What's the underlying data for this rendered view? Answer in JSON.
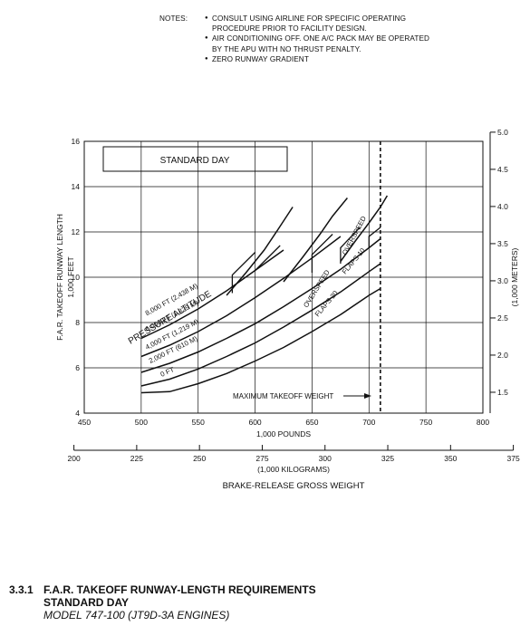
{
  "notes": {
    "header": "NOTES:",
    "items": [
      "CONSULT USING AIRLINE FOR SPECIFIC OPERATING PROCEDURE PRIOR TO FACILITY DESIGN.",
      "AIR CONDITIONING OFF. ONE A/C PACK MAY BE OPERATED BY THE APU WITH NO THRUST PENALTY.",
      "ZERO RUNWAY GRADIENT"
    ]
  },
  "chart_data": {
    "type": "line",
    "box_label": "STANDARD DAY",
    "xlabel": "1,000 POUNDS",
    "ylabel": "F.A.R. TAKEOFF RUNWAY LENGTH",
    "ylabel_unit": "1,000 FEET",
    "y2label": "(1,000 METERS)",
    "x2label": "(1,000 KILOGRAMS)",
    "bottom_label": "BRAKE-RELEASE GROSS WEIGHT",
    "xlim": [
      450,
      800
    ],
    "ylim": [
      4,
      16
    ],
    "x2lim": [
      200,
      375
    ],
    "y2lim": [
      1.2192,
      5.0
    ],
    "x_ticks": [
      "450",
      "500",
      "550",
      "600",
      "650",
      "700",
      "750",
      "800"
    ],
    "y_ticks": [
      "4",
      "6",
      "8",
      "10",
      "12",
      "14",
      "16"
    ],
    "x2_ticks": [
      "200",
      "225",
      "250",
      "275",
      "300",
      "325",
      "350",
      "375"
    ],
    "y2_ticks": [
      "1.5",
      "2.0",
      "2.5",
      "3.0",
      "3.5",
      "4.0",
      "4.5",
      "5.0"
    ],
    "grid": true,
    "legend_title": "PRESSURE ALTITUDE",
    "max_takeoff_weight_label": "MAXIMUM TAKEOFF WEIGHT",
    "max_takeoff_weight": 710,
    "annotations": {
      "overspeed": "OVERSPEED",
      "flaps_10": "FLAPS 10",
      "flaps_20": "FLAPS 20"
    },
    "series": [
      {
        "name": "0 FT",
        "x": [
          500,
          525,
          550,
          575,
          600,
          625,
          650,
          675,
          700,
          710
        ],
        "y": [
          4.9,
          4.95,
          5.3,
          5.75,
          6.3,
          6.9,
          7.6,
          8.35,
          9.2,
          9.5
        ]
      },
      {
        "name": "2,000 FT (610 M)",
        "x": [
          500,
          525,
          550,
          575,
          600,
          625,
          650,
          675,
          700,
          710
        ],
        "y": [
          5.2,
          5.5,
          5.95,
          6.5,
          7.1,
          7.8,
          8.55,
          9.35,
          10.25,
          10.6
        ]
      },
      {
        "name": "4,000 FT (1,219 M)",
        "x": [
          500,
          525,
          550,
          575,
          600,
          625,
          650,
          675,
          700,
          710
        ],
        "y": [
          5.8,
          6.2,
          6.7,
          7.3,
          7.95,
          8.7,
          9.5,
          10.35,
          11.3,
          11.7
        ]
      },
      {
        "name": "6,000 FT (1,829 M)",
        "x": [
          500,
          525,
          550,
          575,
          600,
          625,
          650,
          675
        ],
        "y": [
          6.5,
          7.0,
          7.6,
          8.3,
          9.1,
          9.95,
          10.85,
          11.8
        ]
      },
      {
        "name": "8,000 FT (2,438 M)",
        "x": [
          500,
          525,
          550,
          575,
          600,
          625
        ],
        "y": [
          7.3,
          7.9,
          8.6,
          9.4,
          10.3,
          11.2
        ]
      }
    ],
    "overspeed_branches": [
      {
        "x": [
          575,
          592,
          608,
          620,
          633
        ],
        "y": [
          9.2,
          10.2,
          11.2,
          12.1,
          13.1
        ]
      },
      {
        "x": [
          625,
          642,
          657,
          668,
          681
        ],
        "y": [
          9.8,
          10.9,
          11.9,
          12.7,
          13.5
        ]
      },
      {
        "x": [
          675,
          688,
          700,
          710,
          716
        ],
        "y": [
          10.7,
          11.6,
          12.4,
          13.1,
          13.6
        ]
      }
    ],
    "flaps_transitions": [
      {
        "x": [
          580,
          580,
          600
        ],
        "y": [
          9.3,
          10.1,
          11.1
        ]
      },
      {
        "x": [
          600,
          608,
          622
        ],
        "y": [
          10.3,
          10.7,
          11.4
        ]
      },
      {
        "x": [
          650,
          650,
          668
        ],
        "y": [
          10.2,
          11.0,
          11.9
        ]
      },
      {
        "x": [
          675,
          675,
          692
        ],
        "y": [
          10.6,
          11.3,
          12.2
        ]
      },
      {
        "x": [
          700,
          700,
          710
        ],
        "y": [
          11.3,
          11.8,
          12.2
        ]
      }
    ]
  },
  "caption": {
    "number": "3.3.1",
    "title": "F.A.R. TAKEOFF RUNWAY-LENGTH REQUIREMENTS",
    "subtitle": "STANDARD DAY",
    "model": "MODEL 747-100 (JT9D-3A ENGINES)"
  }
}
